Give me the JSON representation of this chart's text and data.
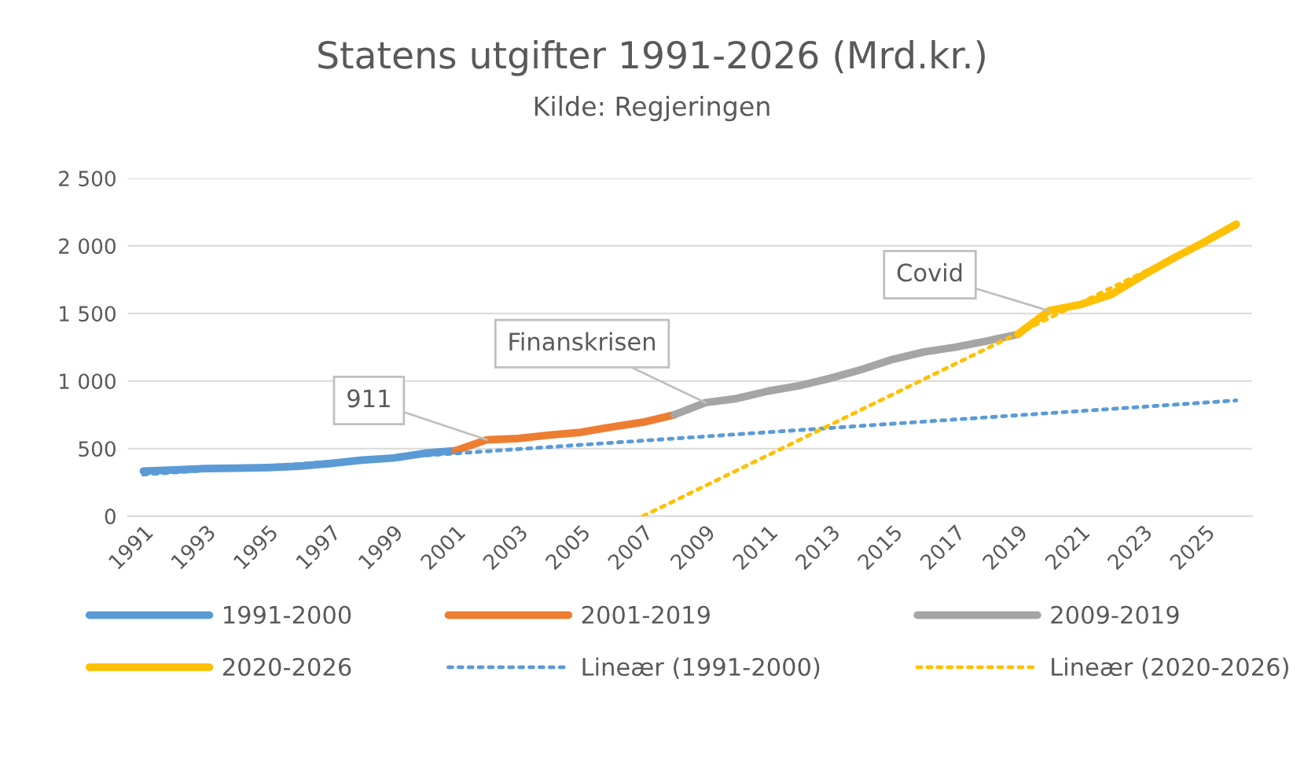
{
  "chart_data": {
    "type": "line",
    "title": "Statens utgifter 1991-2026 (Mrd.kr.)",
    "subtitle": "Kilde: Regjeringen",
    "xlim": [
      1990.5,
      2026.5
    ],
    "xticks": [
      1991,
      1993,
      1995,
      1997,
      1999,
      2001,
      2003,
      2005,
      2007,
      2009,
      2011,
      2013,
      2015,
      2017,
      2019,
      2021,
      2023,
      2025
    ],
    "ylim": [
      0,
      2500
    ],
    "yticks": [
      0,
      500,
      {
        "value": 1000,
        "label": "1 000"
      },
      {
        "value": 1500,
        "label": "1 500"
      },
      {
        "value": 2000,
        "label": "2 000"
      },
      {
        "value": 2500,
        "label": "2 500"
      }
    ],
    "grid": "y",
    "legend": "bottom",
    "marker": "none",
    "series": [
      {
        "name": "1991-2000",
        "color": "#5b9bd5",
        "line_style": "solid",
        "x": [
          1991,
          1992,
          1993,
          1994,
          1995,
          1996,
          1997,
          1998,
          1999,
          2000,
          2001
        ],
        "values": [
          333,
          342,
          352,
          355,
          360,
          370,
          390,
          415,
          430,
          465,
          485
        ]
      },
      {
        "name": "2001-2019",
        "color": "#ed7d31",
        "line_style": "solid",
        "x": [
          2001,
          2002,
          2003,
          2004,
          2005,
          2006,
          2007,
          2008
        ],
        "values": [
          485,
          565,
          575,
          600,
          620,
          660,
          695,
          750
        ]
      },
      {
        "name": "2009-2019",
        "color": "#a5a5a5",
        "line_style": "solid",
        "x": [
          2008,
          2009,
          2010,
          2011,
          2012,
          2013,
          2014,
          2015,
          2016,
          2017,
          2018,
          2019
        ],
        "values": [
          750,
          840,
          870,
          925,
          965,
          1020,
          1085,
          1160,
          1215,
          1250,
          1295,
          1345
        ]
      },
      {
        "name": "2020-2026",
        "color": "#ffc000",
        "line_style": "solid",
        "x": [
          2019,
          2020,
          2021,
          2022,
          2023,
          2024,
          2025,
          2026
        ],
        "values": [
          1345,
          1520,
          1565,
          1640,
          1780,
          1910,
          2030,
          2160
        ]
      },
      {
        "name": "Lineær (1991-2000)",
        "color": "#5b9bd5",
        "line_style": "dotted",
        "x": [
          1991,
          2026
        ],
        "values": [
          308,
          856
        ]
      },
      {
        "name": "Lineær (2020-2026)",
        "color": "#ffc000",
        "line_style": "dotted",
        "x": [
          2007,
          2026
        ],
        "values": [
          0,
          2140
        ]
      }
    ],
    "annotations": [
      {
        "text": "911",
        "x": 2002,
        "y": 565
      },
      {
        "text": "Finanskrisen",
        "x": 2009,
        "y": 840
      },
      {
        "text": "Covid",
        "x": 2020,
        "y": 1520
      }
    ]
  }
}
